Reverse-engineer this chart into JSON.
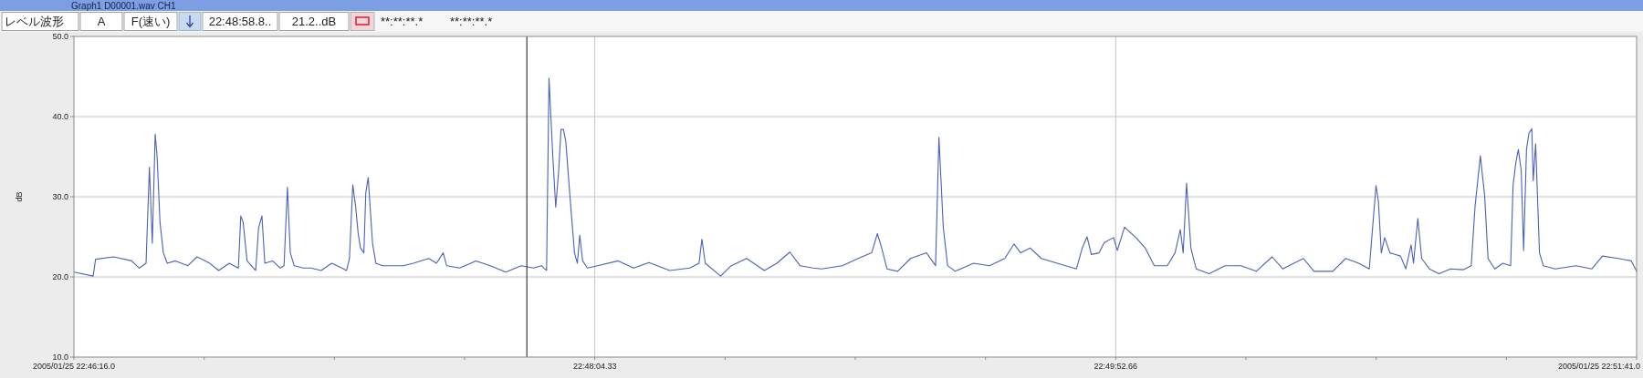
{
  "chart_data": {
    "type": "line",
    "title": "Graph1 D00001.wav CH1",
    "annotations": [
      "レベル波形",
      "A",
      "F(速い)",
      "22:48:58.8..",
      "21.2..dB",
      "**:**:**.*",
      "**:**:**.*"
    ],
    "ylabel": "dB",
    "x": [
      "2005-01-25T22:46:16.1",
      "2005-01-25T22:46:20.0",
      "2005-01-25T22:46:20.5",
      "2005-01-25T22:46:24.3",
      "2005-01-25T22:46:28.0",
      "2005-01-25T22:46:29.6",
      "2005-01-25T22:46:31.0",
      "2005-01-25T22:46:31.2",
      "2005-01-25T22:46:31.7",
      "2005-01-25T22:46:32.3",
      "2005-01-25T22:46:32.9",
      "2005-01-25T22:46:33.3",
      "2005-01-25T22:46:33.9",
      "2005-01-25T22:46:34.6",
      "2005-01-25T22:46:35.4",
      "2005-01-25T22:46:37.1",
      "2005-01-25T22:46:39.7",
      "2005-01-25T22:46:41.6",
      "2005-01-25T22:46:44.0",
      "2005-01-25T22:46:46.1",
      "2005-01-25T22:46:48.3",
      "2005-01-25T22:46:50.2",
      "2005-01-25T22:46:50.7",
      "2005-01-25T22:46:51.2",
      "2005-01-25T22:46:52.0",
      "2005-01-25T22:46:53.8",
      "2005-01-25T22:46:54.4",
      "2005-01-25T22:46:55.1",
      "2005-01-25T22:46:55.7",
      "2005-01-25T22:46:57.3",
      "2005-01-25T22:46:58.9",
      "2005-01-25T22:46:59.7",
      "2005-01-25T22:47:00.4",
      "2005-01-25T22:47:01.0",
      "2005-01-25T22:47:01.8",
      "2005-01-25T22:47:03.7",
      "2005-01-25T22:47:05.3",
      "2005-01-25T22:47:07.4",
      "2005-01-25T22:47:09.6",
      "2005-01-25T22:47:11.7",
      "2005-01-25T22:47:12.7",
      "2005-01-25T22:47:13.3",
      "2005-01-25T22:47:14.0",
      "2005-01-25T22:47:14.6",
      "2005-01-25T22:47:15.1",
      "2005-01-25T22:47:15.6",
      "2005-01-25T22:47:16.3",
      "2005-01-25T22:47:16.7",
      "2005-01-25T22:47:17.2",
      "2005-01-25T22:47:18.1",
      "2005-01-25T22:47:18.8",
      "2005-01-25T22:47:20.2",
      "2005-01-25T22:47:24.5",
      "2005-01-25T22:47:26.6",
      "2005-01-25T22:47:29.8",
      "2005-01-25T22:47:31.4",
      "2005-01-25T22:47:32.8",
      "2005-01-25T22:47:33.5",
      "2005-01-25T22:47:36.2",
      "2005-01-25T22:47:39.6",
      "2005-01-25T22:47:42.6",
      "2005-01-25T22:47:45.8",
      "2005-01-25T22:47:49.0",
      "2005-01-25T22:47:51.6",
      "2005-01-25T22:47:53.2",
      "2005-01-25T22:47:54.3",
      "2005-01-25T22:47:54.8",
      "2005-01-25T22:47:55.6",
      "2005-01-25T22:47:56.2",
      "2005-01-25T22:47:56.8",
      "2005-01-25T22:47:57.3",
      "2005-01-25T22:47:57.8",
      "2005-01-25T22:47:58.3",
      "2005-01-25T22:47:59.1",
      "2005-01-25T22:48:00.1",
      "2005-01-25T22:48:00.7",
      "2005-01-25T22:48:01.2",
      "2005-01-25T22:48:01.8",
      "2005-01-25T22:48:02.8",
      "2005-01-25T22:48:04.9",
      "2005-01-25T22:48:09.2",
      "2005-01-25T22:48:12.4",
      "2005-01-25T22:48:15.6",
      "2005-01-25T22:48:19.9",
      "2005-01-25T22:48:24.1",
      "2005-01-25T22:48:26.0",
      "2005-01-25T22:48:26.6",
      "2005-01-25T22:48:27.3",
      "2005-01-25T22:48:30.5",
      "2005-01-25T22:48:32.7",
      "2005-01-25T22:48:35.9",
      "2005-01-25T22:48:39.6",
      "2005-01-25T22:48:42.2",
      "2005-01-25T22:48:44.9",
      "2005-01-25T22:48:47.0",
      "2005-01-25T22:48:49.7",
      "2005-01-25T22:48:51.5",
      "2005-01-25T22:48:55.8",
      "2005-01-25T22:48:59.1",
      "2005-01-25T22:49:01.9",
      "2005-01-25T22:49:03.1",
      "2005-01-25T22:49:04.0",
      "2005-01-25T22:49:05.1",
      "2005-01-25T22:49:07.3",
      "2005-01-25T22:49:10.0",
      "2005-01-25T22:49:13.3",
      "2005-01-25T22:49:15.2",
      "2005-01-25T22:49:15.9",
      "2005-01-25T22:49:16.8",
      "2005-01-25T22:49:17.7",
      "2005-01-25T22:49:19.3",
      "2005-01-25T22:49:23.1",
      "2005-01-25T22:49:26.4",
      "2005-01-25T22:49:29.6",
      "2005-01-25T22:49:31.5",
      "2005-01-25T22:49:32.9",
      "2005-01-25T22:49:34.9",
      "2005-01-25T22:49:37.2",
      "2005-01-25T22:49:40.5",
      "2005-01-25T22:49:44.5",
      "2005-01-25T22:49:45.7",
      "2005-01-25T22:49:46.7",
      "2005-01-25T22:49:47.6",
      "2005-01-25T22:49:49.2",
      "2005-01-25T22:49:50.3",
      "2005-01-25T22:49:52.2",
      "2005-01-25T22:49:53.0",
      "2005-01-25T22:49:54.5",
      "2005-01-25T22:49:56.9",
      "2005-01-25T22:49:58.8",
      "2005-01-25T22:50:00.7",
      "2005-01-25T22:50:03.4",
      "2005-01-25T22:50:05.0",
      "2005-01-25T22:50:06.1",
      "2005-01-25T22:50:06.7",
      "2005-01-25T22:50:07.4",
      "2005-01-25T22:50:08.3",
      "2005-01-25T22:50:09.4",
      "2005-01-25T22:50:12.1",
      "2005-01-25T22:50:15.4",
      "2005-01-25T22:50:18.7",
      "2005-01-25T22:50:21.9",
      "2005-01-25T22:50:25.2",
      "2005-01-25T22:50:27.4",
      "2005-01-25T22:50:31.7",
      "2005-01-25T22:50:33.9",
      "2005-01-25T22:50:37.8",
      "2005-01-25T22:50:40.5",
      "2005-01-25T22:50:43.2",
      "2005-01-25T22:50:45.4",
      "2005-01-25T22:50:46.1",
      "2005-01-25T22:50:46.8",
      "2005-01-25T22:50:47.3",
      "2005-01-25T22:50:47.9",
      "2005-01-25T22:50:48.6",
      "2005-01-25T22:50:49.7",
      "2005-01-25T22:50:51.9",
      "2005-01-25T22:50:53.0",
      "2005-01-25T22:50:54.1",
      "2005-01-25T22:50:54.6",
      "2005-01-25T22:50:55.5",
      "2005-01-25T22:50:56.3",
      "2005-01-25T22:50:57.9",
      "2005-01-25T22:50:59.9",
      "2005-01-25T22:51:02.3",
      "2005-01-25T22:51:05.0",
      "2005-01-25T22:51:06.6",
      "2005-01-25T22:51:07.4",
      "2005-01-25T22:51:08.5",
      "2005-01-25T22:51:09.4",
      "2005-01-25T22:51:10.1",
      "2005-01-25T22:51:11.5",
      "2005-01-25T22:51:13.2",
      "2005-01-25T22:51:14.8",
      "2005-01-25T22:51:15.3",
      "2005-01-25T22:51:15.9",
      "2005-01-25T22:51:16.4",
      "2005-01-25T22:51:17.0",
      "2005-01-25T22:51:17.5",
      "2005-01-25T22:51:18.1",
      "2005-01-25T22:51:18.6",
      "2005-01-25T22:51:19.2",
      "2005-01-25T22:51:19.5",
      "2005-01-25T22:51:20.0",
      "2005-01-25T22:51:20.8",
      "2005-01-25T22:51:21.6",
      "2005-01-25T22:51:24.1",
      "2005-01-25T22:51:28.4",
      "2005-01-25T22:51:31.7",
      "2005-01-25T22:51:33.9",
      "2005-01-25T22:51:37.2",
      "2005-01-25T22:51:39.9",
      "2005-01-25T22:51:41.0"
    ],
    "series": [
      {
        "color": "#4b62b5",
        "values": [
          20.6,
          20.1,
          22.2,
          22.5,
          22.0,
          21.1,
          21.7,
          25.2,
          33.7,
          24.2,
          37.8,
          35.0,
          26.8,
          23.0,
          21.7,
          22.0,
          21.4,
          22.5,
          21.8,
          20.8,
          21.7,
          21.1,
          27.6,
          26.8,
          22.0,
          20.8,
          26.1,
          27.6,
          21.7,
          22.0,
          21.1,
          21.4,
          31.2,
          23.0,
          21.4,
          21.1,
          21.1,
          20.8,
          21.7,
          21.1,
          20.8,
          22.3,
          31.5,
          28.7,
          25.5,
          23.6,
          23.0,
          30.5,
          32.4,
          24.2,
          21.7,
          21.4,
          21.4,
          21.7,
          22.3,
          21.7,
          23.0,
          21.4,
          21.1,
          22.0,
          21.4,
          20.6,
          21.4,
          21.1,
          21.4,
          20.8,
          44.8,
          35.0,
          28.7,
          33.1,
          38.4,
          38.4,
          36.9,
          30.5,
          23.0,
          21.7,
          25.2,
          22.0,
          21.1,
          21.4,
          22.0,
          21.1,
          21.8,
          20.8,
          21.1,
          21.7,
          24.7,
          21.7,
          20.1,
          21.4,
          22.3,
          20.8,
          21.7,
          23.1,
          21.4,
          21.1,
          21.0,
          21.4,
          22.3,
          23.0,
          25.4,
          23.6,
          21.0,
          20.7,
          22.3,
          23.0,
          21.4,
          37.4,
          26.2,
          21.4,
          20.7,
          21.7,
          21.4,
          22.3,
          24.1,
          23.0,
          23.6,
          22.3,
          21.7,
          21.0,
          23.6,
          25.0,
          22.8,
          23.0,
          24.3,
          24.9,
          23.3,
          26.2,
          24.9,
          23.6,
          21.4,
          21.4,
          23.0,
          25.9,
          23.0,
          31.7,
          23.6,
          21.0,
          20.4,
          21.4,
          21.4,
          20.7,
          22.5,
          21.0,
          22.3,
          20.7,
          20.7,
          22.3,
          21.7,
          21.0,
          26.2,
          31.4,
          29.4,
          23.0,
          24.9,
          23.0,
          22.6,
          21.0,
          24.0,
          21.7,
          27.3,
          22.3,
          21.0,
          20.4,
          21.0,
          20.9,
          21.4,
          28.8,
          35.1,
          30.1,
          22.3,
          21.0,
          21.7,
          21.4,
          31.4,
          34.3,
          35.9,
          33.3,
          23.3,
          35.9,
          37.9,
          38.5,
          32.0,
          36.6,
          23.0,
          21.4,
          21.0,
          21.4,
          21.0,
          22.6,
          22.3,
          22.0,
          20.7
        ]
      }
    ],
    "xlim": [
      "2005-01-25T22:46:16.0",
      "2005-01-25T22:51:41.0"
    ],
    "xticks": [
      {
        "value": "2005-01-25T22:46:16.0",
        "label": "2005/01/25 22:46:16.0"
      },
      {
        "value": "2005-01-25T22:46:43.08",
        "label": null
      },
      {
        "value": "2005-01-25T22:47:10.17",
        "label": null
      },
      {
        "value": "2005-01-25T22:47:37.25",
        "label": null
      },
      {
        "value": "2005-01-25T22:48:04.33",
        "label": "22:48:04.33"
      },
      {
        "value": "2005-01-25T22:48:31.42",
        "label": null
      },
      {
        "value": "2005-01-25T22:48:58.5",
        "label": null
      },
      {
        "value": "2005-01-25T22:49:25.58",
        "label": null
      },
      {
        "value": "2005-01-25T22:49:52.66",
        "label": "22:49:52.66"
      },
      {
        "value": "2005-01-25T22:50:19.75",
        "label": null
      },
      {
        "value": "2005-01-25T22:50:46.83",
        "label": null
      },
      {
        "value": "2005-01-25T22:51:13.92",
        "label": null
      },
      {
        "value": "2005-01-25T22:51:41.0",
        "label": "2005/01/25 22:51:41.0"
      }
    ],
    "ylim": [
      10,
      50
    ],
    "yticks": [
      {
        "value": 10,
        "label": "10.0"
      },
      {
        "value": 20,
        "label": "20.0"
      },
      {
        "value": 30,
        "label": "30.0"
      },
      {
        "value": 40,
        "label": "40.0"
      },
      {
        "value": 50,
        "label": "50.0"
      }
    ],
    "ref_lines": [
      {
        "axis": "x",
        "value": "2005-01-25T22:47:50.2",
        "color": "#3c3c3c"
      }
    ],
    "grid": true
  }
}
